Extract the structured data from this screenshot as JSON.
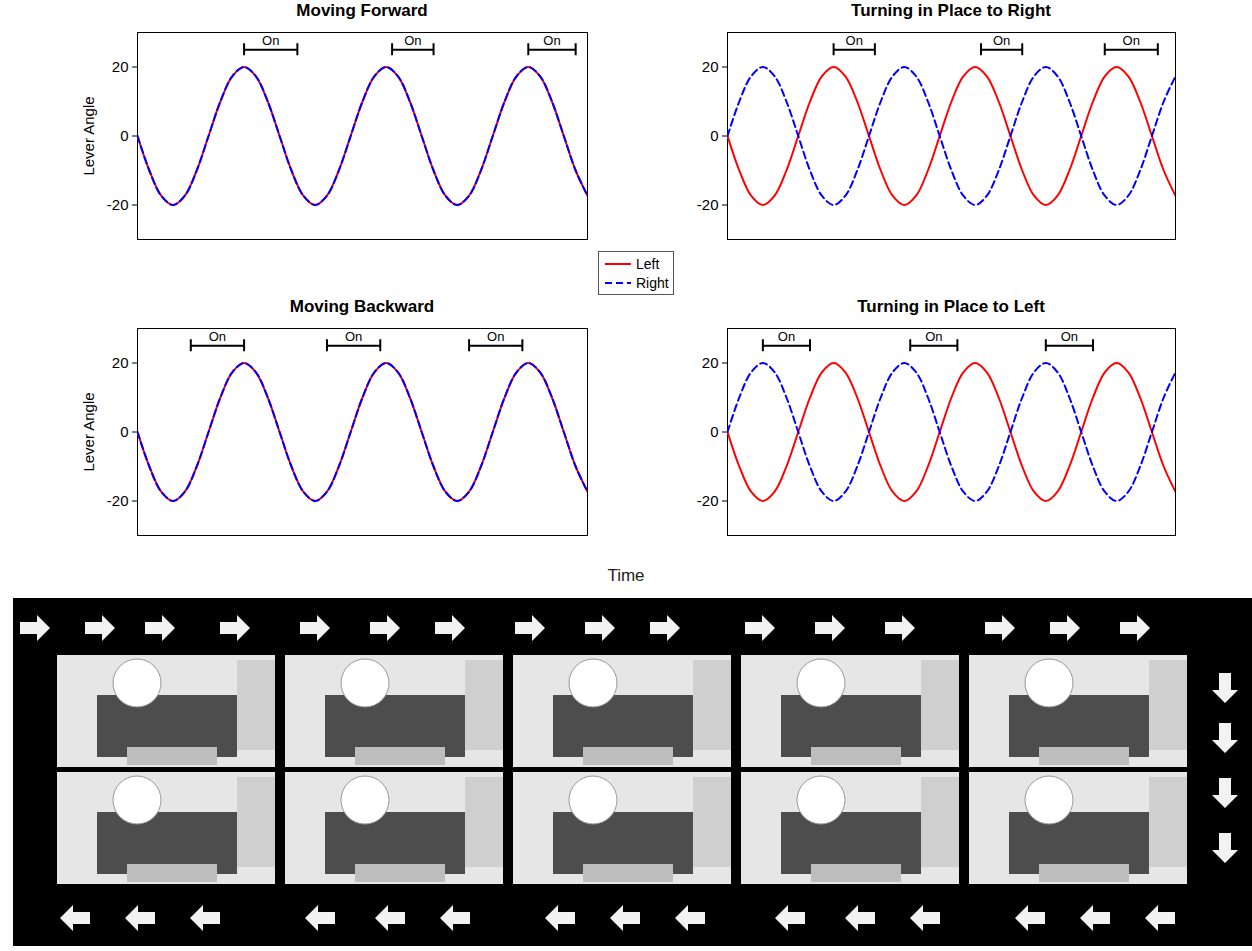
{
  "chart_data": [
    {
      "type": "line",
      "title": "Moving Forward",
      "y_label": "Lever Angle",
      "x": [
        0,
        1,
        2,
        3,
        4,
        5,
        6,
        7,
        8,
        9,
        10,
        11,
        12,
        13,
        14,
        15,
        16,
        17,
        18,
        19,
        20,
        21,
        22,
        23,
        24,
        25,
        26,
        27,
        28,
        29,
        30,
        31,
        32,
        33,
        34,
        35,
        36,
        37,
        38
      ],
      "series": [
        {
          "name": "Left",
          "color": "#ff0000",
          "line_style": "solid",
          "values": [
            0,
            -10,
            -17.3,
            -20,
            -17.3,
            -10,
            0,
            10,
            17.3,
            20,
            17.3,
            10,
            0,
            -10,
            -17.3,
            -20,
            -17.3,
            -10,
            0,
            10,
            17.3,
            20,
            17.3,
            10,
            0,
            -10,
            -17.3,
            -20,
            -17.3,
            -10,
            0,
            10,
            17.3,
            20,
            17.3,
            10,
            0,
            -10,
            -17.3
          ]
        },
        {
          "name": "Right",
          "color": "#0000ff",
          "line_style": "dashed",
          "values": [
            0,
            -10,
            -17.3,
            -20,
            -17.3,
            -10,
            0,
            10,
            17.3,
            20,
            17.3,
            10,
            0,
            -10,
            -17.3,
            -20,
            -17.3,
            -10,
            0,
            10,
            17.3,
            20,
            17.3,
            10,
            0,
            -10,
            -17.3,
            -20,
            -17.3,
            -10,
            0,
            10,
            17.3,
            20,
            17.3,
            10,
            0,
            -10,
            -17.3
          ]
        }
      ],
      "xlim": [
        0,
        38
      ],
      "ylim": [
        -30,
        30
      ],
      "yticks": [
        -20,
        0,
        20
      ],
      "tick_labels": "y",
      "annotations": [
        {
          "text": "On",
          "x1": 9,
          "x2": 13.5,
          "y": 25
        },
        {
          "text": "On",
          "x1": 21.5,
          "x2": 25,
          "y": 25
        },
        {
          "text": "On",
          "x1": 33,
          "x2": 37,
          "y": 25
        }
      ]
    },
    {
      "type": "line",
      "title": "Turning in Place to Right",
      "x": [
        0,
        1,
        2,
        3,
        4,
        5,
        6,
        7,
        8,
        9,
        10,
        11,
        12,
        13,
        14,
        15,
        16,
        17,
        18,
        19,
        20,
        21,
        22,
        23,
        24,
        25,
        26,
        27,
        28,
        29,
        30,
        31,
        32,
        33,
        34,
        35,
        36,
        37,
        38
      ],
      "series": [
        {
          "name": "Left",
          "color": "#ff0000",
          "line_style": "solid",
          "values": [
            0,
            -10,
            -17.3,
            -20,
            -17.3,
            -10,
            0,
            10,
            17.3,
            20,
            17.3,
            10,
            0,
            -10,
            -17.3,
            -20,
            -17.3,
            -10,
            0,
            10,
            17.3,
            20,
            17.3,
            10,
            0,
            -10,
            -17.3,
            -20,
            -17.3,
            -10,
            0,
            10,
            17.3,
            20,
            17.3,
            10,
            0,
            -10,
            -17.3
          ]
        },
        {
          "name": "Right",
          "color": "#0000ff",
          "line_style": "dashed",
          "values": [
            0,
            10,
            17.3,
            20,
            17.3,
            10,
            0,
            -10,
            -17.3,
            -20,
            -17.3,
            -10,
            0,
            10,
            17.3,
            20,
            17.3,
            10,
            0,
            -10,
            -17.3,
            -20,
            -17.3,
            -10,
            0,
            10,
            17.3,
            20,
            17.3,
            10,
            0,
            -10,
            -17.3,
            -20,
            -17.3,
            -10,
            0,
            10,
            17.3
          ]
        }
      ],
      "xlim": [
        0,
        38
      ],
      "ylim": [
        -30,
        30
      ],
      "yticks": [
        -20,
        0,
        20
      ],
      "tick_labels": "y",
      "annotations": [
        {
          "text": "On",
          "x1": 9,
          "x2": 12.5,
          "y": 25
        },
        {
          "text": "On",
          "x1": 21.5,
          "x2": 25,
          "y": 25
        },
        {
          "text": "On",
          "x1": 32,
          "x2": 36.5,
          "y": 25
        }
      ]
    },
    {
      "type": "line",
      "title": "Moving Backward",
      "y_label": "Lever Angle",
      "x": [
        0,
        1,
        2,
        3,
        4,
        5,
        6,
        7,
        8,
        9,
        10,
        11,
        12,
        13,
        14,
        15,
        16,
        17,
        18,
        19,
        20,
        21,
        22,
        23,
        24,
        25,
        26,
        27,
        28,
        29,
        30,
        31,
        32,
        33,
        34,
        35,
        36,
        37,
        38
      ],
      "series": [
        {
          "name": "Left",
          "color": "#ff0000",
          "line_style": "solid",
          "values": [
            0,
            -10,
            -17.3,
            -20,
            -17.3,
            -10,
            0,
            10,
            17.3,
            20,
            17.3,
            10,
            0,
            -10,
            -17.3,
            -20,
            -17.3,
            -10,
            0,
            10,
            17.3,
            20,
            17.3,
            10,
            0,
            -10,
            -17.3,
            -20,
            -17.3,
            -10,
            0,
            10,
            17.3,
            20,
            17.3,
            10,
            0,
            -10,
            -17.3
          ]
        },
        {
          "name": "Right",
          "color": "#0000ff",
          "line_style": "dashed",
          "values": [
            0,
            -10,
            -17.3,
            -20,
            -17.3,
            -10,
            0,
            10,
            17.3,
            20,
            17.3,
            10,
            0,
            -10,
            -17.3,
            -20,
            -17.3,
            -10,
            0,
            10,
            17.3,
            20,
            17.3,
            10,
            0,
            -10,
            -17.3,
            -20,
            -17.3,
            -10,
            0,
            10,
            17.3,
            20,
            17.3,
            10,
            0,
            -10,
            -17.3
          ]
        }
      ],
      "xlim": [
        0,
        38
      ],
      "ylim": [
        -30,
        30
      ],
      "yticks": [
        -20,
        0,
        20
      ],
      "tick_labels": "y",
      "annotations": [
        {
          "text": "On",
          "x1": 4.5,
          "x2": 9,
          "y": 25
        },
        {
          "text": "On",
          "x1": 16,
          "x2": 20.5,
          "y": 25
        },
        {
          "text": "On",
          "x1": 28,
          "x2": 32.5,
          "y": 25
        }
      ]
    },
    {
      "type": "line",
      "title": "Turning in Place to Left",
      "x": [
        0,
        1,
        2,
        3,
        4,
        5,
        6,
        7,
        8,
        9,
        10,
        11,
        12,
        13,
        14,
        15,
        16,
        17,
        18,
        19,
        20,
        21,
        22,
        23,
        24,
        25,
        26,
        27,
        28,
        29,
        30,
        31,
        32,
        33,
        34,
        35,
        36,
        37,
        38
      ],
      "series": [
        {
          "name": "Left",
          "color": "#ff0000",
          "line_style": "solid",
          "values": [
            0,
            -10,
            -17.3,
            -20,
            -17.3,
            -10,
            0,
            10,
            17.3,
            20,
            17.3,
            10,
            0,
            -10,
            -17.3,
            -20,
            -17.3,
            -10,
            0,
            10,
            17.3,
            20,
            17.3,
            10,
            0,
            -10,
            -17.3,
            -20,
            -17.3,
            -10,
            0,
            10,
            17.3,
            20,
            17.3,
            10,
            0,
            -10,
            -17.3
          ]
        },
        {
          "name": "Right",
          "color": "#0000ff",
          "line_style": "dashed",
          "values": [
            0,
            10,
            17.3,
            20,
            17.3,
            10,
            0,
            -10,
            -17.3,
            -20,
            -17.3,
            -10,
            0,
            10,
            17.3,
            20,
            17.3,
            10,
            0,
            -10,
            -17.3,
            -20,
            -17.3,
            -10,
            0,
            10,
            17.3,
            20,
            17.3,
            10,
            0,
            -10,
            -17.3,
            -20,
            -17.3,
            -10,
            0,
            10,
            17.3
          ]
        }
      ],
      "xlim": [
        0,
        38
      ],
      "ylim": [
        -30,
        30
      ],
      "yticks": [
        -20,
        0,
        20
      ],
      "tick_labels": "y",
      "annotations": [
        {
          "text": "On",
          "x1": 3,
          "x2": 7,
          "y": 25
        },
        {
          "text": "On",
          "x1": 15.5,
          "x2": 19.5,
          "y": 25
        },
        {
          "text": "On",
          "x1": 27,
          "x2": 31,
          "y": 25
        }
      ]
    }
  ],
  "x_label": "Time",
  "legend": "center"
}
